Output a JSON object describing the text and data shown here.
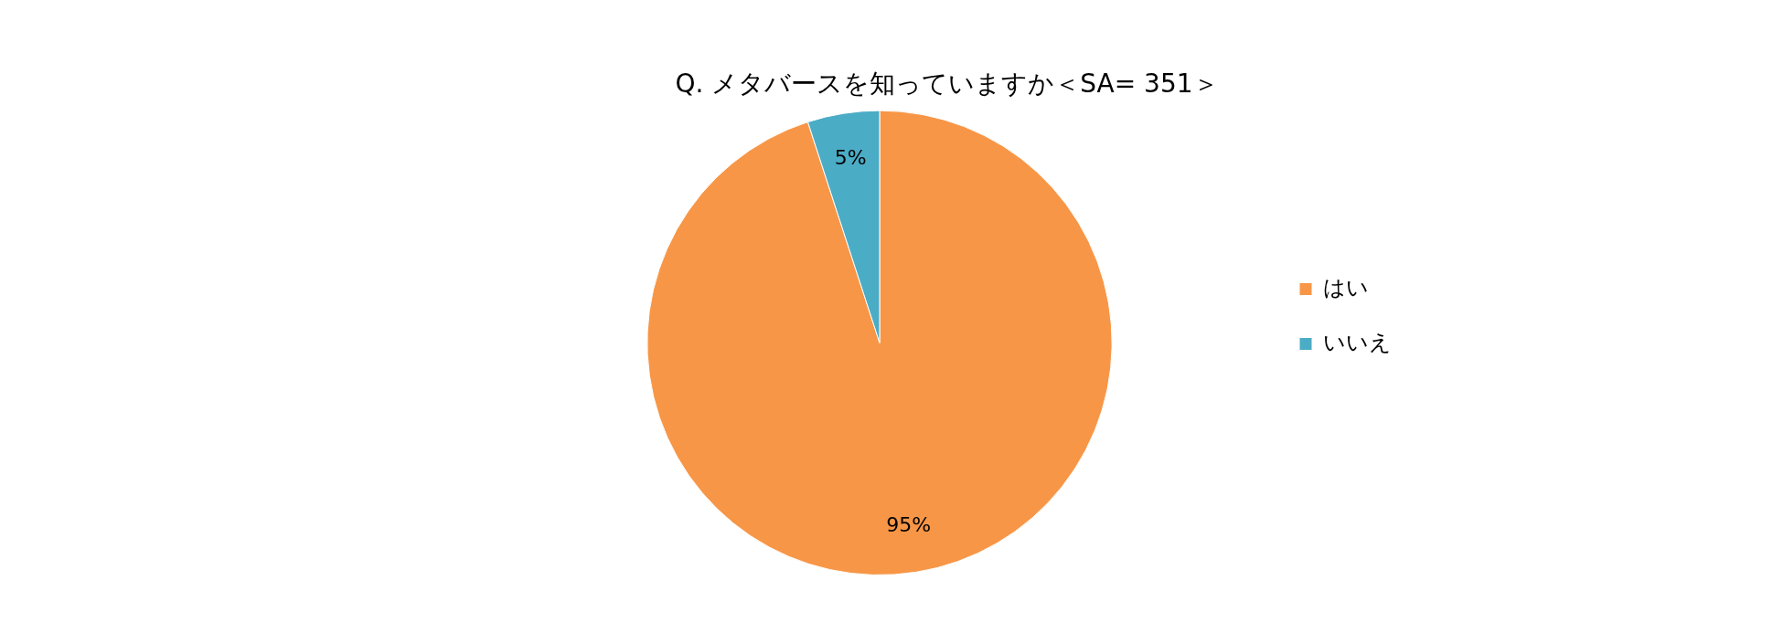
{
  "chart_data": {
    "type": "pie",
    "title": "Q. メタバースを知っていますか＜SA= 351＞",
    "categories": [
      "はい",
      "いいえ"
    ],
    "values": [
      95,
      5
    ],
    "value_labels": [
      "95%",
      "5%"
    ],
    "colors": [
      "#f79646",
      "#4bacc6"
    ],
    "legend": "right"
  }
}
